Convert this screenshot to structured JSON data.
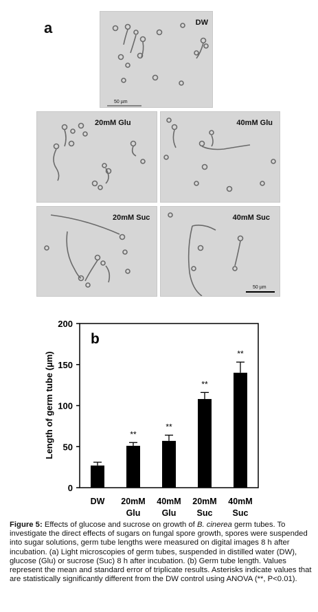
{
  "panel_a_letter": "a",
  "panel_b_letter": "b",
  "micrographs": [
    {
      "condition": "DW",
      "scale_bar": "50 µm"
    },
    {
      "condition": "20mM Glu"
    },
    {
      "condition": "40mM Glu"
    },
    {
      "condition": "20mM Suc"
    },
    {
      "condition": "40mM Suc",
      "scale_bar": "50 µm"
    }
  ],
  "chart_data": {
    "type": "bar",
    "categories": [
      [
        "DW"
      ],
      [
        "20mM",
        "Glu"
      ],
      [
        "40mM",
        "Glu"
      ],
      [
        "20mM",
        "Suc"
      ],
      [
        "40mM",
        "Suc"
      ]
    ],
    "values": [
      27,
      51,
      57,
      108,
      140
    ],
    "errors": [
      4,
      4,
      7,
      8,
      13
    ],
    "annotations": [
      "",
      "**",
      "**",
      "**",
      "**"
    ],
    "ylabel": "Length of germ tube (µm)",
    "ylim": [
      0,
      200
    ],
    "yticks": [
      0,
      50,
      100,
      150,
      200
    ],
    "colors": {
      "bar": "#000000"
    }
  },
  "caption": {
    "label": "Figure 5:",
    "text_1": " Effects of glucose and sucrose on growth of ",
    "species": "B. cinerea",
    "text_2": " germ tubes. To investigate the direct effects of sugars on fungal spore growth, spores were suspended into sugar solutions, germ tube lengths were measured on digital images 8 h after incubation. (a) Light microscopies of germ tubes, suspended in distilled water (DW), glucose (Glu) or sucrose (Suc) 8 h after incubation. (b) Germ tube length. Values represent the mean and standard error of triplicate results. Asterisks indicate values that are statistically significantly different from the DW control using ANOVA (**, P<0.01)."
  }
}
